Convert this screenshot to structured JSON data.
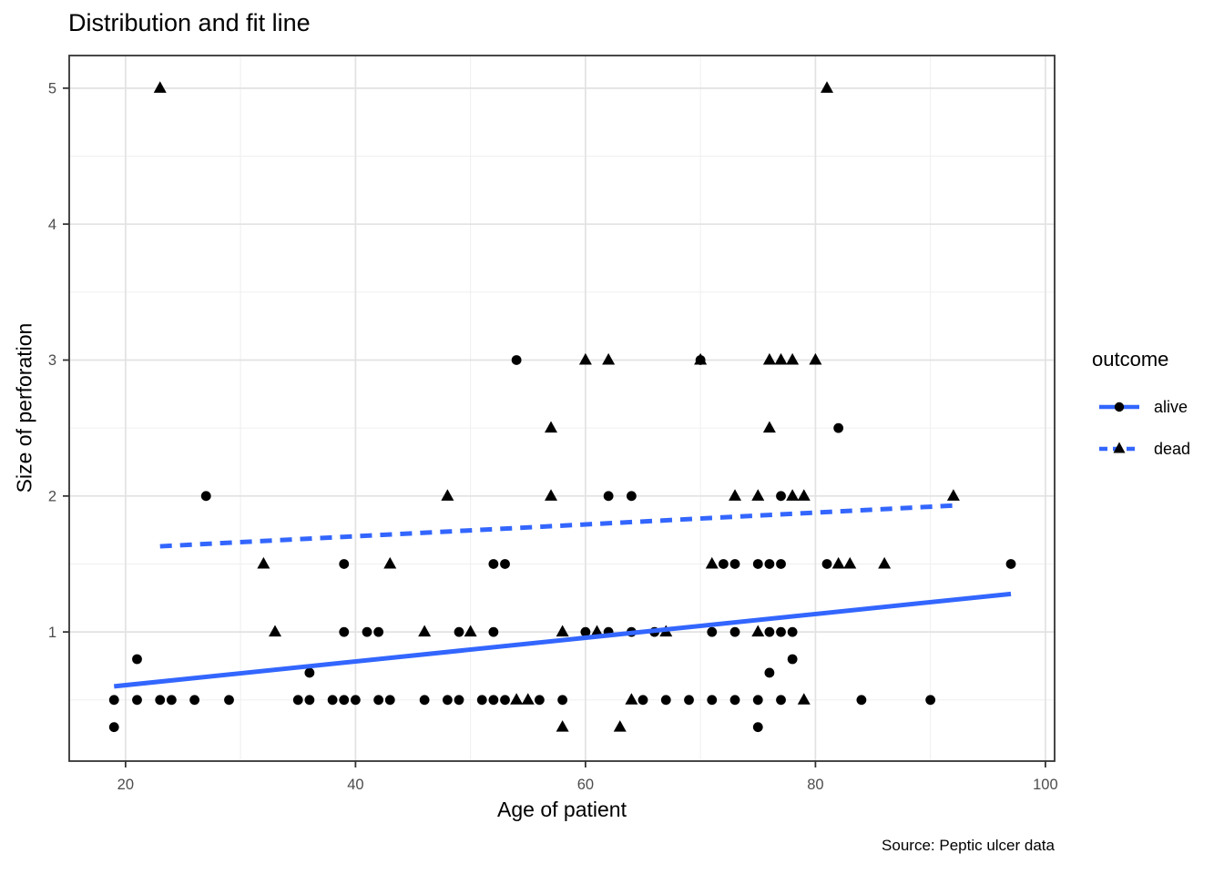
{
  "figure": {
    "title": "Distribution and fit line",
    "x_label": "Age of patient",
    "y_label": "Size of perforation",
    "caption": "Source: Peptic ulcer data"
  },
  "legend": {
    "title": "outcome",
    "entries": [
      {
        "label": "alive",
        "marker": "circle",
        "line": "solid"
      },
      {
        "label": "dead",
        "marker": "triangle",
        "line": "dashed"
      }
    ]
  },
  "colors": {
    "fit_line": "#3366FF",
    "point": "#000000",
    "grid_major": "#E2E2E2",
    "grid_minor": "#EFEFEF",
    "panel_border": "#333333",
    "tick_mark": "#333333",
    "tick_label": "#4D4D4D",
    "panel_background": "#FFFFFF"
  },
  "chart_data": {
    "type": "scatter",
    "title": "Distribution and fit line",
    "xlabel": "Age of patient",
    "ylabel": "Size of perforation",
    "xlim": [
      15.1,
      100.8
    ],
    "ylim": [
      0.05,
      5.24
    ],
    "x_ticks": [
      20,
      40,
      60,
      80,
      100
    ],
    "y_ticks": [
      1,
      2,
      3,
      4,
      5
    ],
    "x_minor": [
      30,
      50,
      70,
      90
    ],
    "y_minor": [
      0.5,
      1.5,
      2.5,
      3.5,
      4.5
    ],
    "grid": true,
    "legend_position": "right",
    "series": [
      {
        "name": "alive",
        "marker": "circle",
        "points": [
          [
            19,
            0.3
          ],
          [
            75,
            0.3
          ],
          [
            19,
            0.5
          ],
          [
            21,
            0.5
          ],
          [
            23,
            0.5
          ],
          [
            24,
            0.5
          ],
          [
            26,
            0.5
          ],
          [
            29,
            0.5
          ],
          [
            35,
            0.5
          ],
          [
            36,
            0.5
          ],
          [
            38,
            0.5
          ],
          [
            39,
            0.5
          ],
          [
            40,
            0.5
          ],
          [
            42,
            0.5
          ],
          [
            43,
            0.5
          ],
          [
            46,
            0.5
          ],
          [
            48,
            0.5
          ],
          [
            49,
            0.5
          ],
          [
            51,
            0.5
          ],
          [
            52,
            0.5
          ],
          [
            53,
            0.5
          ],
          [
            56,
            0.5
          ],
          [
            58,
            0.5
          ],
          [
            65,
            0.5
          ],
          [
            67,
            0.5
          ],
          [
            69,
            0.5
          ],
          [
            71,
            0.5
          ],
          [
            73,
            0.5
          ],
          [
            75,
            0.5
          ],
          [
            77,
            0.5
          ],
          [
            84,
            0.5
          ],
          [
            90,
            0.5
          ],
          [
            36,
            0.7
          ],
          [
            76,
            0.7
          ],
          [
            21,
            0.8
          ],
          [
            78,
            0.8
          ],
          [
            39,
            1
          ],
          [
            41,
            1
          ],
          [
            42,
            1
          ],
          [
            49,
            1
          ],
          [
            52,
            1
          ],
          [
            60,
            1
          ],
          [
            62,
            1
          ],
          [
            64,
            1
          ],
          [
            66,
            1
          ],
          [
            71,
            1
          ],
          [
            73,
            1
          ],
          [
            76,
            1
          ],
          [
            77,
            1
          ],
          [
            78,
            1
          ],
          [
            39,
            1.5
          ],
          [
            52,
            1.5
          ],
          [
            53,
            1.5
          ],
          [
            72,
            1.5
          ],
          [
            73,
            1.5
          ],
          [
            75,
            1.5
          ],
          [
            76,
            1.5
          ],
          [
            77,
            1.5
          ],
          [
            81,
            1.5
          ],
          [
            97,
            1.5
          ],
          [
            27,
            2
          ],
          [
            62,
            2
          ],
          [
            64,
            2
          ],
          [
            77,
            2
          ],
          [
            82,
            2.5
          ],
          [
            54,
            3
          ],
          [
            70,
            3
          ]
        ]
      },
      {
        "name": "dead",
        "marker": "triangle",
        "points": [
          [
            23,
            5
          ],
          [
            81,
            5
          ],
          [
            60,
            3
          ],
          [
            62,
            3
          ],
          [
            70,
            3
          ],
          [
            76,
            3
          ],
          [
            77,
            3
          ],
          [
            78,
            3
          ],
          [
            80,
            3
          ],
          [
            57,
            2.5
          ],
          [
            76,
            2.5
          ],
          [
            48,
            2
          ],
          [
            57,
            2
          ],
          [
            73,
            2
          ],
          [
            75,
            2
          ],
          [
            78,
            2
          ],
          [
            79,
            2
          ],
          [
            92,
            2
          ],
          [
            32,
            1.5
          ],
          [
            43,
            1.5
          ],
          [
            71,
            1.5
          ],
          [
            82,
            1.5
          ],
          [
            83,
            1.5
          ],
          [
            86,
            1.5
          ],
          [
            33,
            1
          ],
          [
            46,
            1
          ],
          [
            50,
            1
          ],
          [
            58,
            1
          ],
          [
            61,
            1
          ],
          [
            67,
            1
          ],
          [
            75,
            1
          ],
          [
            54,
            0.5
          ],
          [
            55,
            0.5
          ],
          [
            64,
            0.5
          ],
          [
            79,
            0.5
          ],
          [
            58,
            0.3
          ],
          [
            63,
            0.3
          ]
        ]
      }
    ],
    "fit_lines": [
      {
        "name": "alive",
        "style": "solid",
        "from": [
          19,
          0.6
        ],
        "to": [
          97,
          1.28
        ]
      },
      {
        "name": "dead",
        "style": "dashed",
        "from": [
          23,
          1.63
        ],
        "to": [
          92,
          1.93
        ]
      }
    ]
  }
}
